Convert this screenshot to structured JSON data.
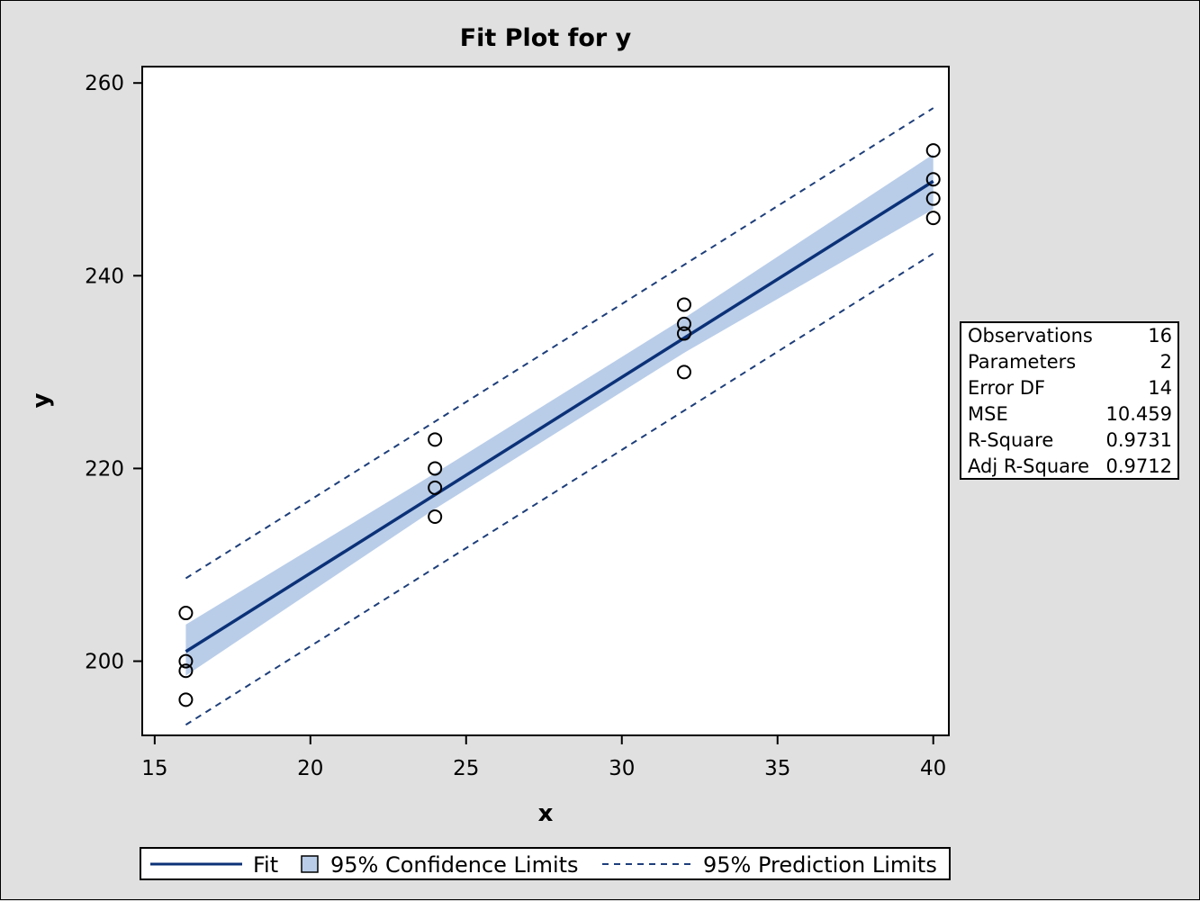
{
  "chart_data": {
    "type": "scatter",
    "title": "Fit Plot for y",
    "xlabel": "x",
    "ylabel": "y",
    "xlim": [
      14.6,
      40.5
    ],
    "ylim": [
      192.3,
      261.7
    ],
    "xticks": [
      15,
      20,
      25,
      30,
      35,
      40
    ],
    "yticks": [
      200,
      220,
      240,
      260
    ],
    "points": [
      {
        "x": 16,
        "y": 205
      },
      {
        "x": 16,
        "y": 200
      },
      {
        "x": 16,
        "y": 199
      },
      {
        "x": 16,
        "y": 196
      },
      {
        "x": 24,
        "y": 223
      },
      {
        "x": 24,
        "y": 220
      },
      {
        "x": 24,
        "y": 218
      },
      {
        "x": 24,
        "y": 215
      },
      {
        "x": 32,
        "y": 237
      },
      {
        "x": 32,
        "y": 235
      },
      {
        "x": 32,
        "y": 234
      },
      {
        "x": 32,
        "y": 230
      },
      {
        "x": 40,
        "y": 253
      },
      {
        "x": 40,
        "y": 250
      },
      {
        "x": 40,
        "y": 248
      },
      {
        "x": 40,
        "y": 246
      }
    ],
    "fit": {
      "x": [
        16,
        40
      ],
      "y": [
        201.0,
        249.8
      ]
    },
    "confidence_band": {
      "x": [
        16,
        24,
        32,
        40
      ],
      "lower": [
        198.5,
        215.8,
        232.0,
        246.9
      ],
      "upper": [
        203.8,
        219.5,
        235.6,
        252.6
      ]
    },
    "prediction_limits": {
      "x": [
        16,
        40
      ],
      "lower": [
        193.4,
        242.3
      ],
      "upper": [
        208.6,
        257.4
      ]
    },
    "colors": {
      "fit": "#0b3177",
      "band": "#b9cde9",
      "prediction": "#1d3e7a",
      "marker": "#000000",
      "plot_background": "#ffffff",
      "page_background": "#e0e0e0"
    },
    "stats": [
      {
        "label": "Observations",
        "value": "16"
      },
      {
        "label": "Parameters",
        "value": "2"
      },
      {
        "label": "Error DF",
        "value": "14"
      },
      {
        "label": "MSE",
        "value": "10.459"
      },
      {
        "label": "R-Square",
        "value": "0.9731"
      },
      {
        "label": "Adj R-Square",
        "value": "0.9712"
      }
    ],
    "legend": {
      "position": "bottom",
      "fit": "Fit",
      "confidence": "95% Confidence Limits",
      "prediction": "95% Prediction Limits"
    }
  }
}
